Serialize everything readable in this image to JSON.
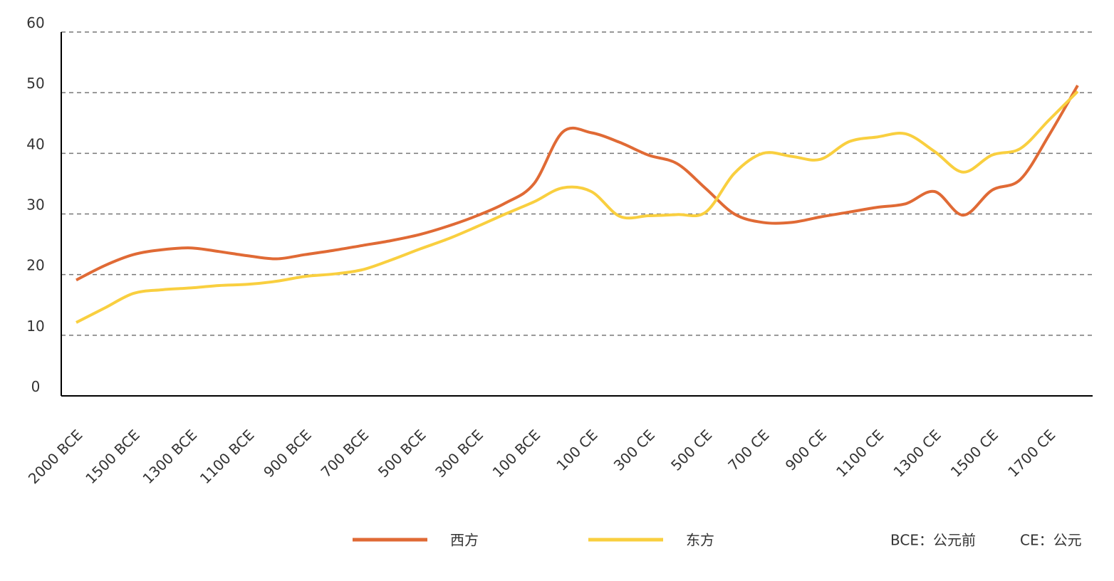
{
  "chart_data": {
    "type": "line",
    "categories": [
      "2000 BCE",
      null,
      "1500 BCE",
      null,
      "1300 BCE",
      null,
      "1100 BCE",
      null,
      "900 BCE",
      null,
      "700 BCE",
      null,
      "500 BCE",
      null,
      "300 BCE",
      null,
      "100 BCE",
      null,
      "100 CE",
      null,
      "300 CE",
      null,
      "500 CE",
      null,
      "700 CE",
      null,
      "900 CE",
      null,
      "1100 CE",
      null,
      "1300 CE",
      null,
      "1500 CE",
      null,
      "1700 CE",
      null
    ],
    "series": [
      {
        "name": "西方",
        "color": "#e06a35",
        "values": [
          19.1,
          21.5,
          23.3,
          24.1,
          24.4,
          23.8,
          23.1,
          22.6,
          23.3,
          24.0,
          24.8,
          25.6,
          26.6,
          28.0,
          29.7,
          31.8,
          35.0,
          43.5,
          43.4,
          41.8,
          39.7,
          38.3,
          34.2,
          30.0,
          28.6,
          28.6,
          29.5,
          30.3,
          31.1,
          31.7,
          33.7,
          29.8,
          33.9,
          35.7,
          43.0,
          51.2
        ]
      },
      {
        "name": "东方",
        "color": "#f9cf3f",
        "values": [
          12.1,
          14.5,
          16.9,
          17.5,
          17.8,
          18.2,
          18.4,
          18.9,
          19.7,
          20.1,
          20.8,
          22.4,
          24.2,
          25.9,
          27.9,
          30.0,
          32.0,
          34.3,
          33.7,
          29.6,
          29.7,
          29.9,
          30.3,
          36.7,
          40.0,
          39.5,
          39.0,
          41.9,
          42.7,
          43.2,
          40.3,
          36.9,
          39.7,
          40.8,
          45.5,
          50.2
        ]
      }
    ],
    "ylim": [
      0,
      60
    ],
    "yticks": [
      0,
      10,
      20,
      30,
      40,
      50,
      60
    ],
    "grid": true,
    "annotations": [
      "BCE：公元前",
      "CE：公元"
    ]
  }
}
